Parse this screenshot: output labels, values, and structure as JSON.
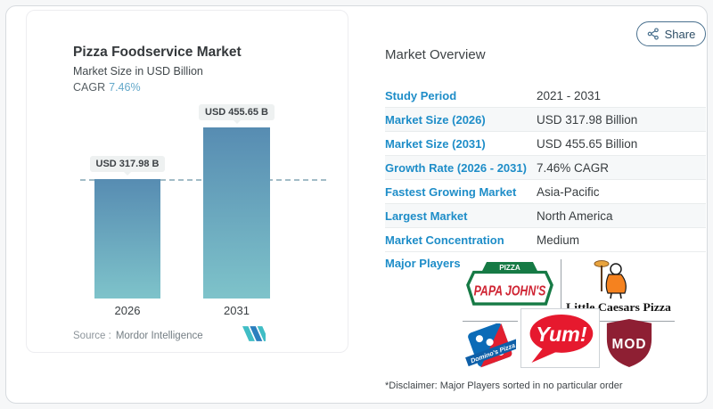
{
  "share_button": {
    "label": "Share",
    "icon": "share-nodes-icon"
  },
  "chart_card": {
    "title": "Pizza Foodservice Market",
    "subtitle": "Market Size in USD Billion",
    "cagr_label": "CAGR",
    "cagr_value": "7.46%",
    "source_label": "Source :",
    "source_value": "Mordor Intelligence",
    "source_logo": "mordor-intelligence-logo"
  },
  "chart_data": {
    "type": "bar",
    "categories": [
      "2026",
      "2031"
    ],
    "values": [
      317.98,
      455.65
    ],
    "value_labels": [
      "USD 317.98 B",
      "USD 455.65 B"
    ],
    "title": "Pizza Foodservice Market",
    "ylabel": "Market Size in USD Billion",
    "unit": "USD Billion",
    "cagr": "7.46%",
    "dashed_reference_line_at": 317.98,
    "bar_gradient": [
      "#578cb2",
      "#7ec3ca"
    ],
    "grid": false,
    "legend": "none"
  },
  "overview": {
    "heading": "Market Overview",
    "rows": [
      {
        "label": "Study Period",
        "value": "2021 - 2031"
      },
      {
        "label": "Market Size (2026)",
        "value": "USD 317.98 Billion"
      },
      {
        "label": "Market Size (2031)",
        "value": "USD 455.65 Billion"
      },
      {
        "label": "Growth Rate (2026 - 2031)",
        "value": "7.46% CAGR"
      },
      {
        "label": "Fastest Growing Market",
        "value": "Asia-Pacific"
      },
      {
        "label": "Largest Market",
        "value": "North America"
      },
      {
        "label": "Market Concentration",
        "value": "Medium"
      }
    ],
    "major_players_label": "Major Players",
    "players": [
      "Papa John's",
      "Little Caesars Pizza",
      "Domino's Pizza",
      "Yum!",
      "MOD"
    ],
    "player_logos": {
      "papa_johns": {
        "banner": "PIZZA",
        "wordmark": "PAPA JOHN'S"
      },
      "little_caesars": {
        "wordmark": "Little Caesars Pizza"
      },
      "dominos": {
        "wordmark": "Domino's Pizza"
      },
      "yum": {
        "wordmark": "Yum!"
      },
      "mod": {
        "wordmark": "MOD"
      }
    },
    "disclaimer": "*Disclaimer: Major Players sorted in no particular order"
  },
  "colors": {
    "label_blue": "#1e8dc8",
    "cagr_blue": "#63a8ca",
    "bar_top": "#578cb2",
    "bar_bottom": "#7ec3ca",
    "dashed_line": "#a2bcc7",
    "share_border": "#49708e",
    "papa_johns_green": "#167a45",
    "papa_johns_red": "#cf2332",
    "dominos_blue": "#0b6bb7",
    "dominos_red": "#e21f2f",
    "yum_red": "#e6192e",
    "mod_maroon": "#8e1f33",
    "mordor_teal": "#40bdc5",
    "mordor_blue": "#2b7fbe"
  }
}
